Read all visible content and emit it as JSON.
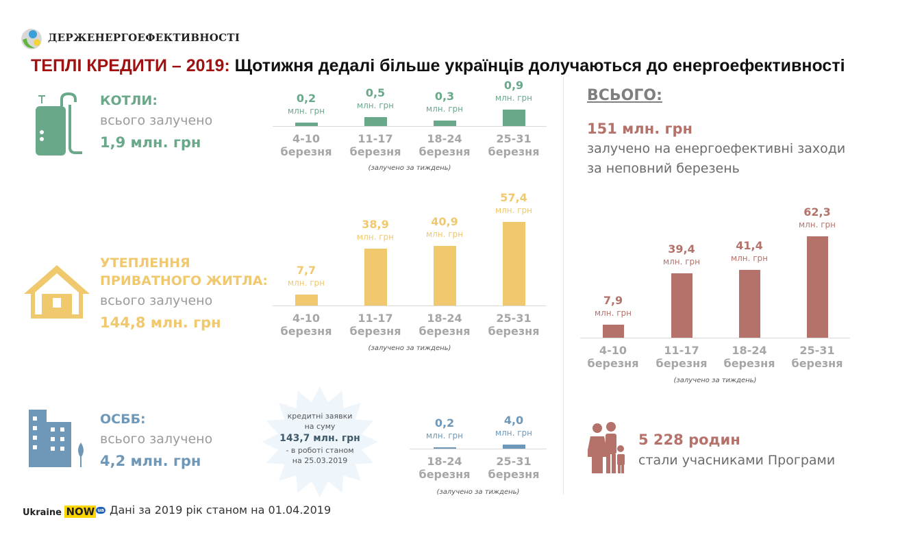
{
  "header": {
    "org": "ДЕРЖЕНЕРГОЕФЕКТИВНОСТІ",
    "title_red": "ТЕПЛІ КРЕДИТИ – 2019:",
    "title_black": "Щотижня дедалі більше українців долучаються до енергоефективності"
  },
  "colors": {
    "boilers": "#6aa88a",
    "insulation": "#f0c86e",
    "osbb": "#6f98b8",
    "total": "#b5726a",
    "title_red": "#a01212"
  },
  "boilers": {
    "heading": "КОТЛИ:",
    "sub": "всього залучено",
    "total": "1,9 млн. грн"
  },
  "insulation": {
    "heading_1": "УТЕПЛЕННЯ",
    "heading_2": "ПРИВАТНОГО ЖИТЛА:",
    "sub": "всього залучено",
    "total": "144,8 млн. грн"
  },
  "osbb": {
    "heading": "ОСББ:",
    "sub": "всього залучено",
    "total": "4,2 млн. грн"
  },
  "burst": {
    "line1": "кредитні заявки",
    "line2": "на суму",
    "amount": "143,7 млн. грн",
    "line3": "- в роботі станом",
    "line4": "на 25.03.2019"
  },
  "total": {
    "heading": "ВСЬОГО:",
    "amount": "151 млн. грн",
    "line1": "залучено на енергоефективні заходи",
    "line2": "за неповний березень"
  },
  "families": {
    "count": "5 228 родин",
    "text": "стали учасниками Програми"
  },
  "footer": {
    "brand": "Ukraine",
    "brand_now": "NOW",
    "brand_ua": "ua",
    "note": "Дані за 2019 рік станом на 01.04.2019"
  },
  "chart_data": [
    {
      "id": "boilers",
      "type": "bar",
      "unit": "млн. грн",
      "note": "(залучено за тиждень)",
      "categories": [
        [
          "4-10",
          "березня"
        ],
        [
          "11-17",
          "березня"
        ],
        [
          "18-24",
          "березня"
        ],
        [
          "25-31",
          "березня"
        ]
      ],
      "values": [
        0.2,
        0.5,
        0.3,
        0.9
      ],
      "labels": [
        "0,2",
        "0,5",
        "0,3",
        "0,9"
      ]
    },
    {
      "id": "insulation",
      "type": "bar",
      "unit": "млн. грн",
      "note": "(залучено за тиждень)",
      "categories": [
        [
          "4-10",
          "березня"
        ],
        [
          "11-17",
          "березня"
        ],
        [
          "18-24",
          "березня"
        ],
        [
          "25-31",
          "березня"
        ]
      ],
      "values": [
        7.7,
        38.9,
        40.9,
        57.4
      ],
      "labels": [
        "7,7",
        "38,9",
        "40,9",
        "57,4"
      ]
    },
    {
      "id": "osbb",
      "type": "bar",
      "unit": "млн. грн",
      "note": "(залучено за тиждень)",
      "categories": [
        [
          "18-24",
          "березня"
        ],
        [
          "25-31",
          "березня"
        ]
      ],
      "values": [
        0.2,
        4.0
      ],
      "labels": [
        "0,2",
        "4,0"
      ]
    },
    {
      "id": "total",
      "type": "bar",
      "unit": "млн. грн",
      "note": "(залучено за тиждень)",
      "categories": [
        [
          "4-10",
          "березня"
        ],
        [
          "11-17",
          "березня"
        ],
        [
          "18-24",
          "березня"
        ],
        [
          "25-31",
          "березня"
        ]
      ],
      "values": [
        7.9,
        39.4,
        41.4,
        62.3
      ],
      "labels": [
        "7,9",
        "39,4",
        "41,4",
        "62,3"
      ]
    }
  ]
}
